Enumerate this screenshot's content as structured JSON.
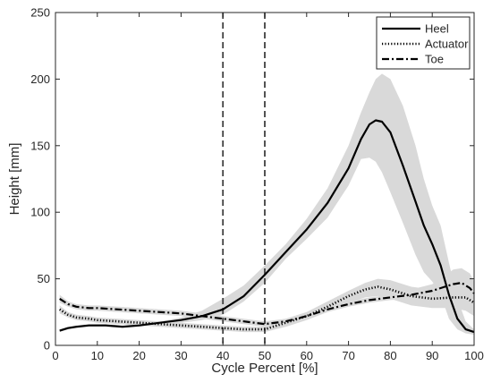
{
  "chart_data": {
    "type": "line",
    "title": "",
    "xlabel": "Cycle Percent [%]",
    "ylabel": "Height [mm]",
    "xlim": [
      0,
      100
    ],
    "ylim": [
      0,
      250
    ],
    "xticks": [
      "0",
      "10",
      "20",
      "30",
      "40",
      "50",
      "60",
      "70",
      "80",
      "90",
      "100"
    ],
    "yticks": [
      "0",
      "50",
      "100",
      "150",
      "200",
      "250"
    ],
    "grid": false,
    "legend_position": "top-right",
    "vertical_markers": [
      40,
      50
    ],
    "series": [
      {
        "name": "Heel",
        "style": "solid",
        "x": [
          1,
          3,
          5,
          8,
          12,
          16,
          20,
          25,
          30,
          35,
          40,
          45,
          50,
          55,
          60,
          65,
          70,
          73,
          75,
          76.5,
          78,
          80,
          83,
          86,
          88,
          90,
          92,
          94,
          96,
          98,
          100
        ],
        "y": [
          11,
          13,
          14,
          15,
          15,
          14,
          15,
          17,
          19,
          22,
          27,
          37,
          53,
          70,
          87,
          107,
          133,
          155,
          166,
          169,
          168,
          160,
          135,
          108,
          90,
          76,
          60,
          38,
          20,
          12,
          10
        ],
        "band_lower": [
          10,
          12,
          13,
          14,
          14,
          13,
          14,
          16,
          17,
          19,
          23,
          33,
          47,
          65,
          80,
          96,
          120,
          140,
          141,
          138,
          130,
          115,
          92,
          68,
          55,
          48,
          38,
          20,
          12,
          9,
          8
        ],
        "band_upper": [
          12,
          14,
          15,
          16,
          16,
          15,
          16,
          18,
          21,
          26,
          35,
          45,
          60,
          76,
          95,
          118,
          150,
          175,
          190,
          200,
          204,
          200,
          180,
          150,
          125,
          105,
          90,
          62,
          35,
          18,
          12
        ]
      },
      {
        "name": "Actuator",
        "style": "dotted",
        "x": [
          1,
          3,
          5,
          8,
          10,
          15,
          20,
          25,
          30,
          35,
          40,
          45,
          50,
          55,
          60,
          65,
          70,
          74,
          77,
          80,
          85,
          90,
          95,
          98,
          100
        ],
        "y": [
          27,
          23,
          21,
          20,
          19,
          18,
          17,
          16,
          15,
          14,
          13,
          12,
          12,
          17,
          22,
          29,
          37,
          42,
          44,
          42,
          37,
          35,
          36,
          36,
          32
        ],
        "band_lower": [
          24,
          21,
          19,
          18,
          17,
          16,
          15,
          14,
          13,
          12,
          11,
          10,
          10,
          14,
          19,
          25,
          32,
          36,
          37,
          35,
          30,
          28,
          28,
          26,
          22
        ],
        "band_upper": [
          30,
          25,
          23,
          22,
          21,
          20,
          19,
          18,
          17,
          16,
          15,
          14,
          14,
          20,
          25,
          33,
          41,
          47,
          50,
          49,
          44,
          42,
          45,
          48,
          42
        ]
      },
      {
        "name": "Toe",
        "style": "dashdot",
        "x": [
          1,
          3,
          5,
          8,
          10,
          15,
          20,
          25,
          30,
          35,
          40,
          45,
          50,
          55,
          60,
          65,
          70,
          75,
          80,
          85,
          90,
          93,
          95,
          97,
          99,
          100
        ],
        "y": [
          35,
          31,
          29,
          28,
          28,
          27,
          26,
          25,
          24,
          22,
          20,
          18,
          16,
          18,
          22,
          27,
          31,
          34,
          36,
          38,
          41,
          44,
          46,
          47,
          43,
          39
        ],
        "band_lower": [
          32,
          29,
          27,
          26,
          26,
          25,
          24,
          23,
          22,
          20,
          18,
          16,
          14,
          16,
          20,
          25,
          29,
          32,
          34,
          35,
          37,
          38,
          38,
          36,
          32,
          28
        ],
        "band_upper": [
          38,
          33,
          31,
          30,
          30,
          29,
          28,
          27,
          26,
          24,
          22,
          20,
          18,
          20,
          24,
          29,
          33,
          36,
          38,
          42,
          46,
          52,
          57,
          58,
          54,
          48
        ]
      }
    ]
  }
}
